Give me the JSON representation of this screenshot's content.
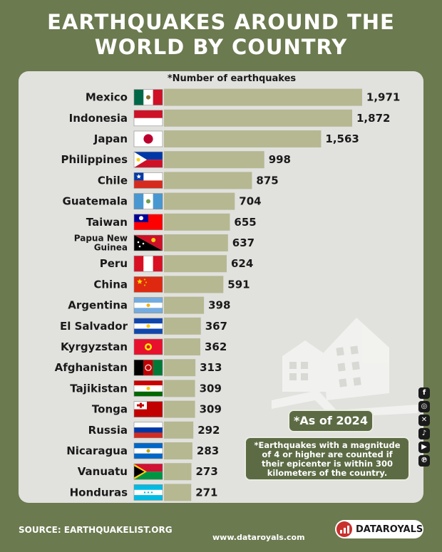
{
  "title_lines": [
    "EARTHQUAKES AROUND THE",
    "WORLD BY COUNTRY"
  ],
  "chart_data": {
    "type": "bar",
    "orientation": "horizontal",
    "subtitle": "*Number of earthquakes",
    "categories": [
      "Mexico",
      "Indonesia",
      "Japan",
      "Philippines",
      "Chile",
      "Guatemala",
      "Taiwan",
      "Papua New Guinea",
      "Peru",
      "China",
      "Argentina",
      "El Salvador",
      "Kyrgyzstan",
      "Afghanistan",
      "Tajikistan",
      "Tonga",
      "Russia",
      "Nicaragua",
      "Vanuatu",
      "Honduras"
    ],
    "values": [
      1971,
      1872,
      1563,
      998,
      875,
      704,
      655,
      637,
      624,
      591,
      398,
      367,
      362,
      313,
      309,
      309,
      292,
      283,
      273,
      271
    ],
    "value_labels": [
      "1,971",
      "1,872",
      "1,563",
      "998",
      "875",
      "704",
      "655",
      "637",
      "624",
      "591",
      "398",
      "367",
      "362",
      "313",
      "309",
      "309",
      "292",
      "283",
      "273",
      "271"
    ],
    "xlim": [
      0,
      2000
    ],
    "grid": false,
    "bar_color": "#b6b892"
  },
  "notes": {
    "as_of": "*As of 2024",
    "footnote": "*Earthquakes with a magnitude of 4 or higher are counted if their epicenter is within 300 kilometers of the country."
  },
  "footer": {
    "source": "SOURCE: EARTHQUAKELIST.ORG",
    "website": "www.dataroyals.com",
    "brand": "DATAROYALS"
  },
  "social_icons": [
    "facebook-icon",
    "instagram-icon",
    "x-icon",
    "tiktok-icon",
    "youtube-icon",
    "pinterest-icon"
  ],
  "colors": {
    "background": "#6b7a4f",
    "panel": "#e1e1de",
    "accent": "#5c6b44",
    "brand_red": "#c9302c"
  }
}
